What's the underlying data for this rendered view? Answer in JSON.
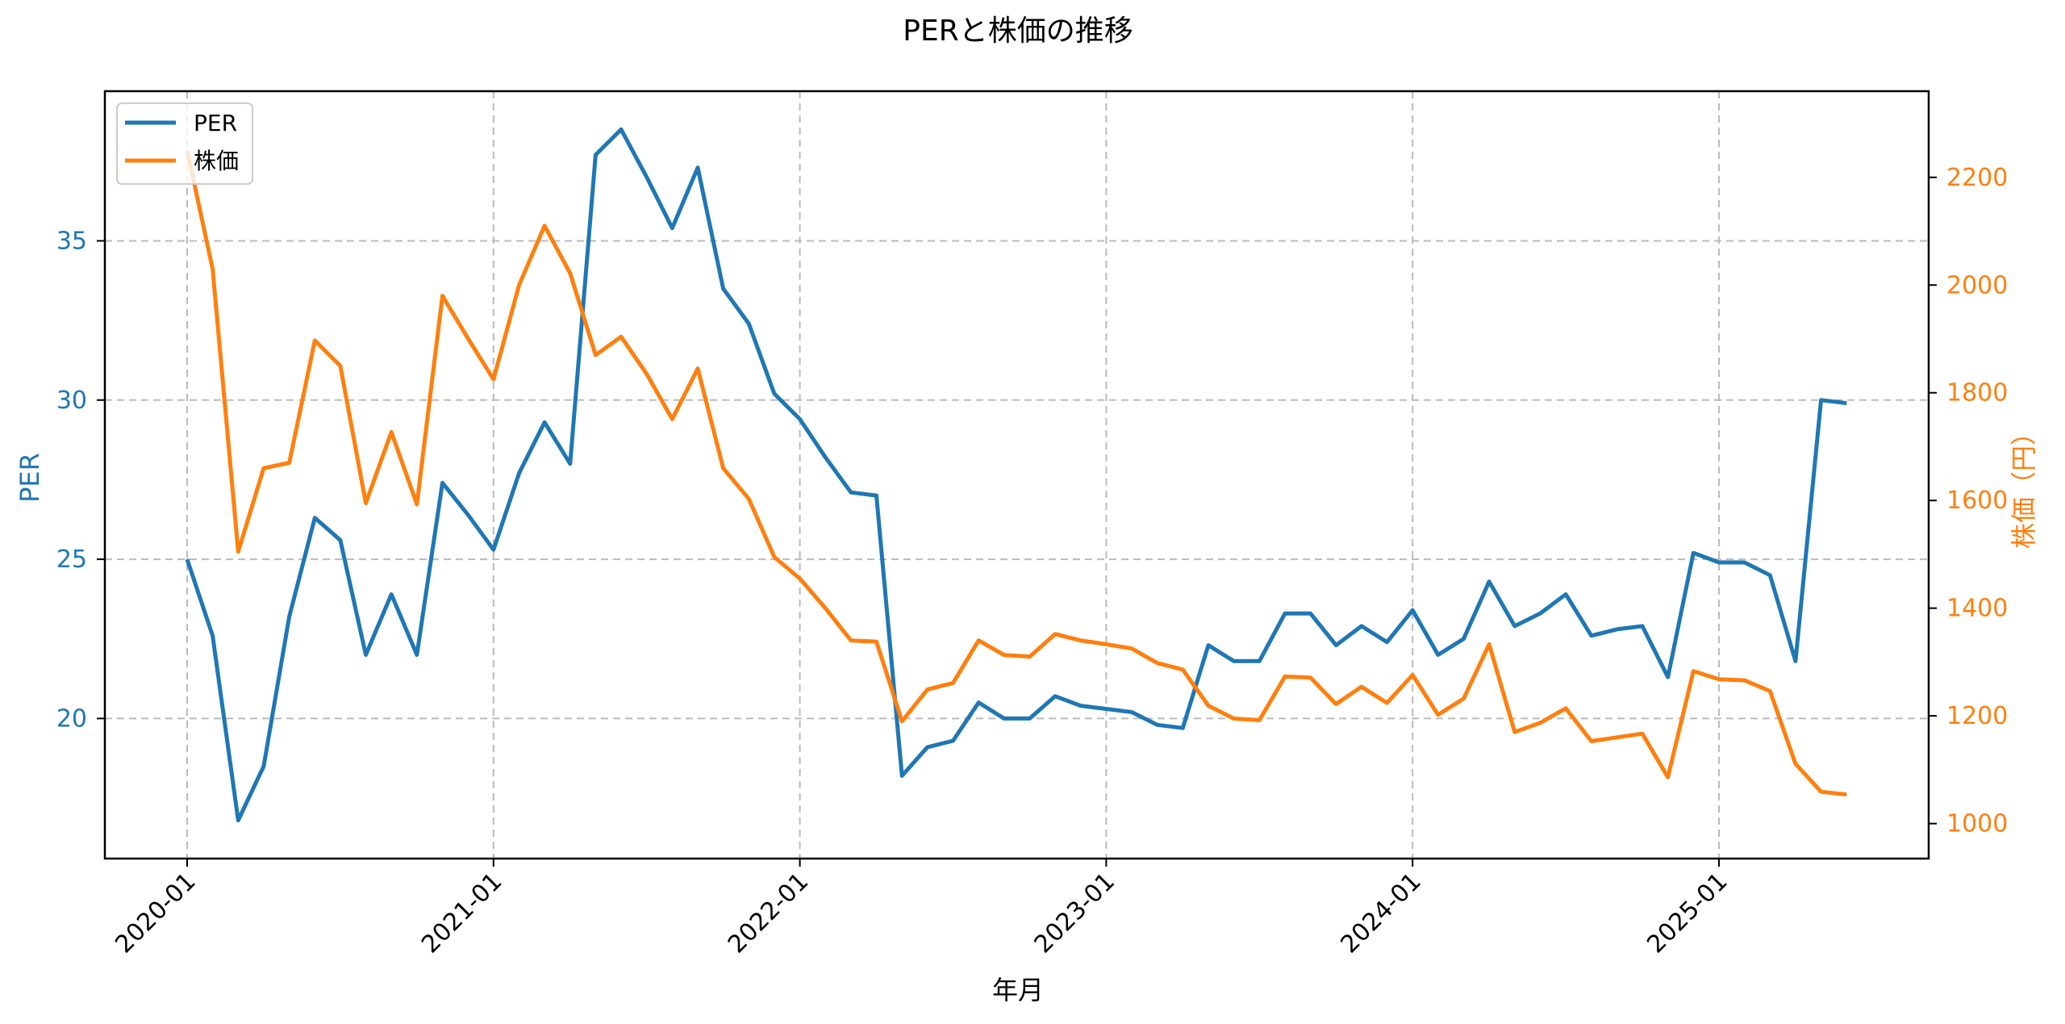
{
  "chart_data": {
    "type": "line",
    "title": "PERと株価の推移",
    "xlabel": "年月",
    "ylabel_left": "PER",
    "ylabel_right": "株価（円）",
    "ylim_left": [
      15.6,
      39.7
    ],
    "ylim_right": [
      935,
      2360
    ],
    "yticks_left": [
      20,
      25,
      30,
      35
    ],
    "yticks_right": [
      1000,
      1200,
      1400,
      1600,
      1800,
      2000,
      2200
    ],
    "xtick_labels": [
      "2020-01",
      "2021-01",
      "2022-01",
      "2023-01",
      "2024-01",
      "2025-01"
    ],
    "xtick_index": [
      0,
      12,
      24,
      36,
      48,
      60
    ],
    "x_start": "2020-01",
    "x_interval": "monthly",
    "grid": true,
    "legend_position": "upper left",
    "colors": {
      "PER": "#1f77b4",
      "株価": "#ff7f0e"
    },
    "x": [
      "2020-01",
      "2020-02",
      "2020-03",
      "2020-04",
      "2020-05",
      "2020-06",
      "2020-07",
      "2020-08",
      "2020-09",
      "2020-10",
      "2020-11",
      "2020-12",
      "2021-01",
      "2021-02",
      "2021-03",
      "2021-04",
      "2021-05",
      "2021-06",
      "2021-07",
      "2021-08",
      "2021-09",
      "2021-10",
      "2021-11",
      "2021-12",
      "2022-01",
      "2022-02",
      "2022-03",
      "2022-04",
      "2022-05",
      "2022-06",
      "2022-07",
      "2022-08",
      "2022-09",
      "2022-10",
      "2022-11",
      "2022-12",
      "2023-01",
      "2023-02",
      "2023-03",
      "2023-04",
      "2023-05",
      "2023-06",
      "2023-07",
      "2023-08",
      "2023-09",
      "2023-10",
      "2023-11",
      "2023-12",
      "2024-01",
      "2024-02",
      "2024-03",
      "2024-04",
      "2024-05",
      "2024-06",
      "2024-07",
      "2024-08",
      "2024-09",
      "2024-10",
      "2024-11",
      "2024-12",
      "2025-01",
      "2025-02",
      "2025-03",
      "2025-04",
      "2025-05",
      "2025-06"
    ],
    "series": [
      {
        "name": "PER",
        "axis": "left",
        "values": [
          25.0,
          22.6,
          16.8,
          18.5,
          23.2,
          26.3,
          25.6,
          22.0,
          23.9,
          22.0,
          27.4,
          26.4,
          25.3,
          27.7,
          29.3,
          28.0,
          37.7,
          38.5,
          37.0,
          35.4,
          37.3,
          33.5,
          32.4,
          30.2,
          29.4,
          28.2,
          27.1,
          27.0,
          18.2,
          19.1,
          19.3,
          20.5,
          20.0,
          20.0,
          20.7,
          20.4,
          20.3,
          20.2,
          19.8,
          19.7,
          22.3,
          21.8,
          21.8,
          23.3,
          23.3,
          22.3,
          22.9,
          22.4,
          23.4,
          22.0,
          22.5,
          24.3,
          22.9,
          23.3,
          23.9,
          22.6,
          22.8,
          22.9,
          21.3,
          25.2,
          24.9,
          24.9,
          24.5,
          21.8,
          30.0,
          29.9
        ]
      },
      {
        "name": "株価",
        "axis": "right",
        "values": [
          2250,
          2030,
          1505,
          1660,
          1670,
          1897,
          1850,
          1595,
          1727,
          1593,
          1980,
          1901,
          1825,
          2000,
          2110,
          2022,
          1870,
          1904,
          1835,
          1751,
          1845,
          1660,
          1603,
          1495,
          1455,
          1400,
          1340,
          1338,
          1190,
          1249,
          1261,
          1340,
          1313,
          1310,
          1352,
          1340,
          1333,
          1325,
          1298,
          1286,
          1219,
          1195,
          1192,
          1273,
          1271,
          1222,
          1254,
          1224,
          1276,
          1202,
          1232,
          1333,
          1170,
          1187,
          1214,
          1153,
          1160,
          1167,
          1086,
          1283,
          1268,
          1266,
          1246,
          1111,
          1059,
          1054
        ]
      }
    ]
  },
  "legend": {
    "items": [
      {
        "label": "PER",
        "color": "#1f77b4"
      },
      {
        "label": "株価",
        "color": "#ff7f0e"
      }
    ]
  }
}
